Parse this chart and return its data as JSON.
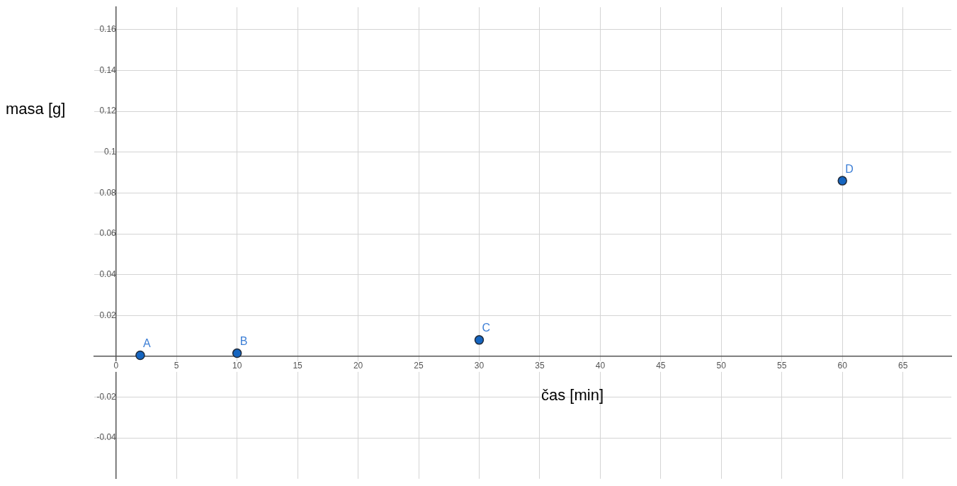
{
  "chart_data": {
    "type": "scatter",
    "xlabel": "čas [min]",
    "ylabel": "masa [g]",
    "x": [
      2,
      10,
      30,
      60
    ],
    "series": [
      {
        "color": "#1565c0",
        "values": [
          0.0005,
          0.0015,
          0.008,
          0.086
        ]
      }
    ],
    "annotations": [
      {
        "text": "A",
        "x": 2,
        "y": 0.0005
      },
      {
        "text": "B",
        "x": 10,
        "y": 0.0015
      },
      {
        "text": "C",
        "x": 30,
        "y": 0.008
      },
      {
        "text": "D",
        "x": 60,
        "y": 0.086
      }
    ],
    "xlim": [
      -1.8,
      69
    ],
    "ylim": [
      -0.06,
      0.171
    ],
    "xticks": [
      0,
      5,
      10,
      15,
      20,
      25,
      30,
      35,
      40,
      45,
      50,
      55,
      60,
      65
    ],
    "yticks": [
      -0.04,
      -0.02,
      0.02,
      0.04,
      0.06,
      0.08,
      0.1,
      0.12,
      0.14,
      0.16
    ],
    "grid": true,
    "legend": false,
    "marker": "circle"
  }
}
